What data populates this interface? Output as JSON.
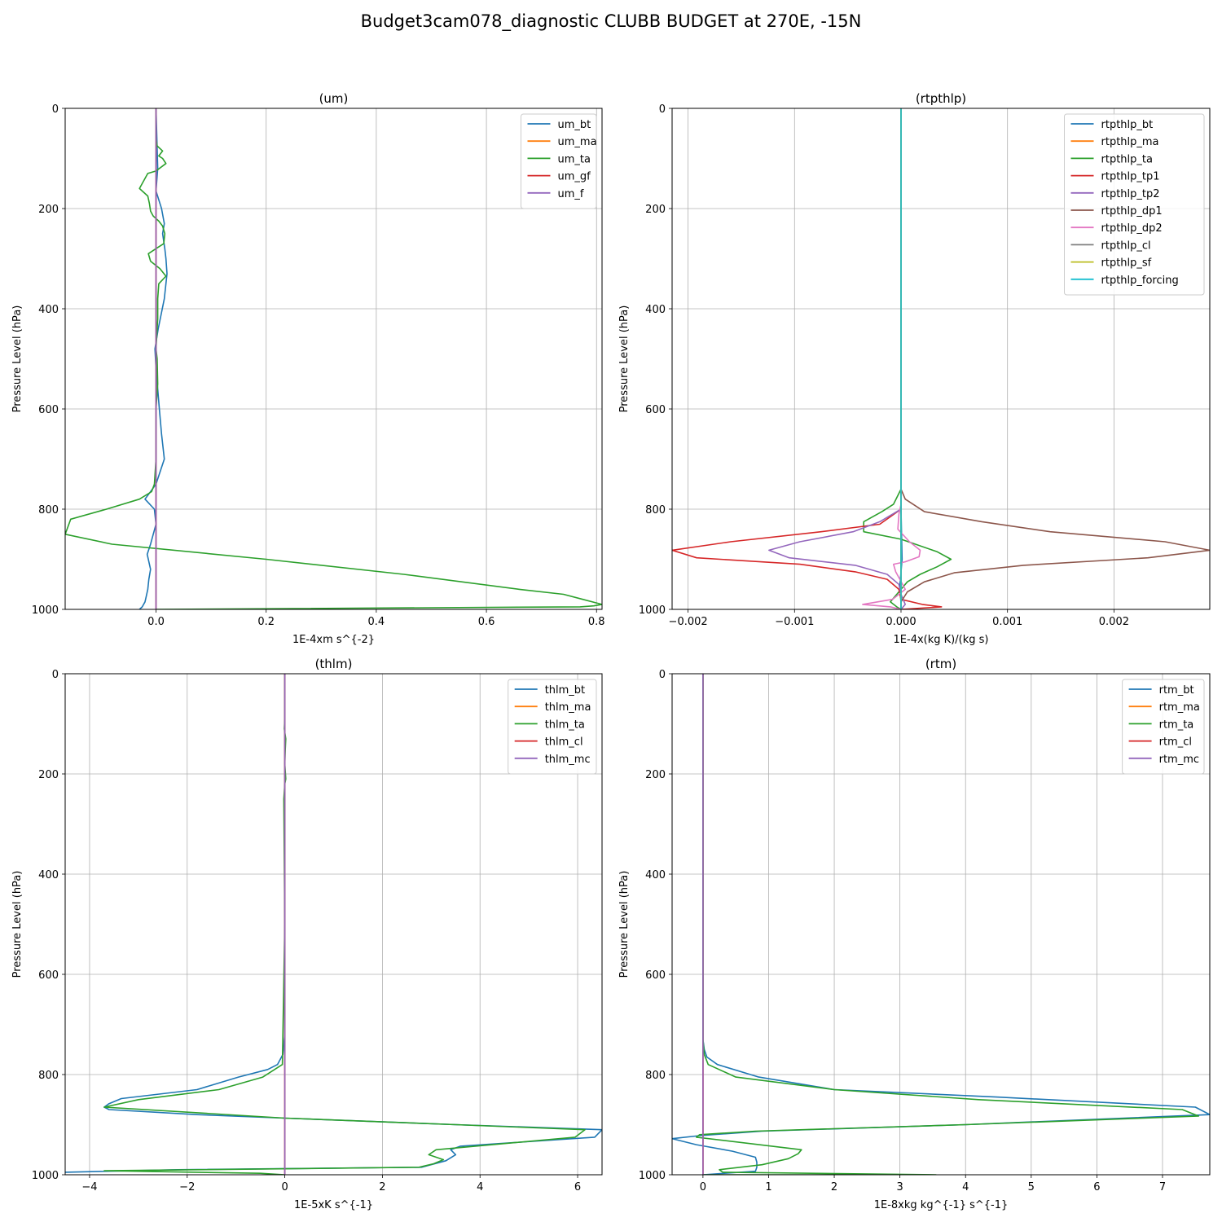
{
  "figure": {
    "title": "Budget3cam078_diagnostic CLUBB BUDGET at 270E, -15N"
  },
  "chart_data": [
    {
      "type": "line",
      "title": "(um)",
      "xlabel": "1E-4xm s^{-2}",
      "ylabel": "Pressure Level (hPa)",
      "xlim": [
        -0.165,
        0.81
      ],
      "ylim": [
        1000,
        0
      ],
      "xticks": [
        0.0,
        0.2,
        0.4,
        0.6,
        0.8
      ],
      "xtick_labels": [
        "0.0",
        "0.2",
        "0.4",
        "0.6",
        "0.8"
      ],
      "yticks": [
        0,
        200,
        400,
        600,
        800,
        1000
      ],
      "ytick_labels": [
        "0",
        "200",
        "400",
        "600",
        "800",
        "1000"
      ],
      "grid": true,
      "legend_loc": "upper right",
      "series": [
        {
          "name": "um_bt",
          "color": "#1f77b4",
          "x": [
            0.0,
            0.003,
            0.0,
            0.01,
            0.015,
            0.012,
            0.016,
            0.018,
            0.02,
            0.015,
            0.004,
            -0.002,
            0.0,
            0.003,
            0.006,
            0.01,
            0.015,
            0.0,
            -0.02,
            -0.003,
            0.0,
            -0.005,
            -0.01,
            -0.016,
            -0.01,
            -0.013,
            -0.015,
            -0.018,
            -0.02,
            -0.025,
            -0.03
          ],
          "y": [
            0,
            120,
            165,
            200,
            230,
            250,
            280,
            300,
            330,
            380,
            440,
            480,
            520,
            560,
            600,
            650,
            700,
            750,
            780,
            800,
            830,
            850,
            870,
            890,
            920,
            940,
            960,
            975,
            985,
            995,
            1000
          ]
        },
        {
          "name": "um_ma",
          "color": "#ff7f0e",
          "x": [
            0.0,
            0.0
          ],
          "y": [
            0,
            1000
          ]
        },
        {
          "name": "um_ta",
          "color": "#2ca02c",
          "x": [
            0.0,
            0.0,
            0.002,
            0.012,
            0.005,
            0.012,
            0.018,
            0.0,
            -0.015,
            -0.03,
            -0.015,
            -0.012,
            -0.01,
            -0.005,
            0.005,
            0.012,
            0.016,
            0.014,
            0.0,
            -0.014,
            -0.01,
            0.007,
            0.018,
            0.005,
            0.003,
            0.003,
            0.0,
            0.002,
            0.003,
            0.0,
            0.0,
            -0.003,
            -0.008,
            -0.03,
            -0.09,
            -0.155,
            -0.165,
            -0.08,
            0.2,
            0.45,
            0.66,
            0.74,
            0.775,
            0.81,
            0.795,
            0.77,
            0.0
          ],
          "y": [
            0,
            60,
            75,
            85,
            95,
            100,
            110,
            125,
            130,
            160,
            175,
            190,
            205,
            215,
            225,
            235,
            250,
            270,
            280,
            290,
            305,
            320,
            335,
            350,
            380,
            420,
            480,
            500,
            550,
            600,
            700,
            750,
            765,
            780,
            800,
            820,
            850,
            870,
            900,
            930,
            960,
            970,
            980,
            990,
            993,
            995,
            1000
          ]
        },
        {
          "name": "um_gf",
          "color": "#d62728",
          "x": [
            0.0,
            0.0
          ],
          "y": [
            0,
            1000
          ]
        },
        {
          "name": "um_f",
          "color": "#9467bd",
          "x": [
            0.0,
            0.0
          ],
          "y": [
            0,
            1000
          ]
        }
      ]
    },
    {
      "type": "line",
      "title": "(rtpthlp)",
      "xlabel": "1E-4x(kg K)/(kg s)",
      "ylabel": "Pressure Level (hPa)",
      "xlim": [
        -0.00215,
        0.0029
      ],
      "ylim": [
        1000,
        0
      ],
      "xticks": [
        -0.002,
        -0.001,
        0.0,
        0.001,
        0.002
      ],
      "xtick_labels": [
        "−0.002",
        "−0.001",
        "0.000",
        "0.001",
        "0.002"
      ],
      "yticks": [
        0,
        200,
        400,
        600,
        800,
        1000
      ],
      "ytick_labels": [
        "0",
        "200",
        "400",
        "600",
        "800",
        "1000"
      ],
      "grid": true,
      "legend_loc": "upper right",
      "series": [
        {
          "name": "rtpthlp_bt",
          "color": "#1f77b4",
          "x": [
            0.0,
            0.0,
            1e-05,
            -1e-05,
            0.0,
            0.0
          ],
          "y": [
            0,
            800,
            900,
            950,
            990,
            1000
          ]
        },
        {
          "name": "rtpthlp_ma",
          "color": "#ff7f0e",
          "x": [
            0.0,
            0.0
          ],
          "y": [
            0,
            1000
          ]
        },
        {
          "name": "rtpthlp_ta",
          "color": "#2ca02c",
          "x": [
            0.0,
            0.0,
            -7e-05,
            -0.00018,
            -0.00035,
            -0.00035,
            0.0,
            0.00034,
            0.00047,
            0.00034,
            0.00018,
            6e-05,
            0.0,
            -0.0001,
            -4e-05,
            0.0
          ],
          "y": [
            0,
            760,
            790,
            805,
            825,
            845,
            860,
            885,
            900,
            915,
            930,
            945,
            960,
            985,
            995,
            1000
          ]
        },
        {
          "name": "rtpthlp_tp1",
          "color": "#d62728",
          "x": [
            0.0,
            0.0,
            -0.0002,
            -0.00075,
            -0.0016,
            -0.00215,
            -0.00192,
            -0.00095,
            -0.00043,
            -0.00013,
            -2e-05,
            0.0,
            0.0002,
            0.00038,
            0.0
          ],
          "y": [
            0,
            800,
            830,
            845,
            865,
            882,
            897,
            910,
            925,
            940,
            960,
            980,
            990,
            995,
            1000
          ]
        },
        {
          "name": "rtpthlp_tp2",
          "color": "#9467bd",
          "x": [
            0.0,
            0.0,
            -0.0002,
            -0.00045,
            -0.00095,
            -0.00124,
            -0.00105,
            -0.00043,
            -0.00013,
            -2e-05,
            0.0,
            4e-05,
            0.0
          ],
          "y": [
            0,
            800,
            825,
            845,
            865,
            882,
            897,
            912,
            930,
            950,
            970,
            990,
            1000
          ]
        },
        {
          "name": "rtpthlp_dp1",
          "color": "#8c564b",
          "x": [
            0.0,
            0.0,
            4e-05,
            0.00022,
            0.00076,
            0.0014,
            0.00248,
            0.0029,
            0.00232,
            0.00115,
            0.0005,
            0.00022,
            6e-05,
            0.0,
            0.0
          ],
          "y": [
            0,
            760,
            780,
            805,
            825,
            845,
            865,
            882,
            897,
            912,
            927,
            945,
            965,
            985,
            1000
          ]
        },
        {
          "name": "rtpthlp_dp2",
          "color": "#e377c2",
          "x": [
            0.0,
            0.0,
            -2e-05,
            -3e-05,
            8e-05,
            0.00018,
            0.00017,
            4e-05,
            -7e-05,
            -5e-05,
            4e-05,
            -8e-05,
            -0.00036,
            -0.0001,
            0.0
          ],
          "y": [
            0,
            790,
            810,
            840,
            865,
            882,
            895,
            905,
            910,
            925,
            960,
            980,
            990,
            995,
            1000
          ]
        },
        {
          "name": "rtpthlp_cl",
          "color": "#7f7f7f",
          "x": [
            0.0,
            0.0
          ],
          "y": [
            0,
            1000
          ]
        },
        {
          "name": "rtpthlp_sf",
          "color": "#bcbd22",
          "x": [
            0.0,
            0.0
          ],
          "y": [
            0,
            1000
          ]
        },
        {
          "name": "rtpthlp_forcing",
          "color": "#17becf",
          "x": [
            0.0,
            0.0
          ],
          "y": [
            0,
            1000
          ]
        }
      ]
    },
    {
      "type": "line",
      "title": "(thlm)",
      "xlabel": "1E-5xK s^{-1}",
      "ylabel": "Pressure Level (hPa)",
      "xlim": [
        -4.5,
        6.5
      ],
      "ylim": [
        1000,
        0
      ],
      "xticks": [
        -4,
        -2,
        0,
        2,
        4,
        6
      ],
      "xtick_labels": [
        "−4",
        "−2",
        "0",
        "2",
        "4",
        "6"
      ],
      "yticks": [
        0,
        200,
        400,
        600,
        800,
        1000
      ],
      "ytick_labels": [
        "0",
        "200",
        "400",
        "600",
        "800",
        "1000"
      ],
      "grid": true,
      "legend_loc": "upper right",
      "series": [
        {
          "name": "thlm_bt",
          "color": "#1f77b4",
          "x": [
            0.0,
            0.0,
            0.0,
            -0.02,
            -0.04,
            -0.15,
            -0.35,
            -0.95,
            -1.8,
            -3.35,
            -3.6,
            -3.7,
            -3.6,
            -1.8,
            0.0,
            3.5,
            6.5,
            6.35,
            3.6,
            3.4,
            3.5,
            3.3,
            2.8,
            -2.2,
            -4.5
          ],
          "y": [
            0,
            600,
            720,
            740,
            760,
            780,
            790,
            805,
            830,
            848,
            858,
            865,
            870,
            880,
            887,
            900,
            910,
            925,
            943,
            950,
            960,
            972,
            985,
            990,
            995
          ]
        },
        {
          "name": "thlm_ma",
          "color": "#ff7f0e",
          "x": [
            0.0,
            0.0
          ],
          "y": [
            0,
            1000
          ]
        },
        {
          "name": "thlm_ta",
          "color": "#2ca02c",
          "x": [
            0.0,
            0.0,
            -0.01,
            0.02,
            0.01,
            0.0,
            0.02,
            0.0,
            -0.02,
            0.0,
            -0.05,
            -0.45,
            -1.35,
            -3.0,
            -3.7,
            -1.5,
            0.0,
            3.5,
            6.15,
            5.95,
            3.1,
            2.95,
            3.25,
            3.05,
            2.75,
            -3.7,
            -0.5,
            0.0
          ],
          "y": [
            0,
            90,
            110,
            130,
            150,
            180,
            210,
            220,
            250,
            500,
            780,
            805,
            830,
            850,
            865,
            878,
            887,
            900,
            910,
            925,
            950,
            960,
            970,
            978,
            985,
            992,
            997,
            1000
          ]
        },
        {
          "name": "thlm_cl",
          "color": "#d62728",
          "x": [
            0.0,
            0.0
          ],
          "y": [
            0,
            1000
          ]
        },
        {
          "name": "thlm_mc",
          "color": "#9467bd",
          "x": [
            0.0,
            0.0
          ],
          "y": [
            0,
            1000
          ]
        }
      ]
    },
    {
      "type": "line",
      "title": "(rtm)",
      "xlabel": "1E-8xkg kg^{-1} s^{-1}",
      "ylabel": "Pressure Level (hPa)",
      "xlim": [
        -0.47,
        7.72
      ],
      "ylim": [
        1000,
        0
      ],
      "xticks": [
        0,
        1,
        2,
        3,
        4,
        5,
        6,
        7
      ],
      "xtick_labels": [
        "0",
        "1",
        "2",
        "3",
        "4",
        "5",
        "6",
        "7"
      ],
      "yticks": [
        0,
        200,
        400,
        600,
        800,
        1000
      ],
      "ytick_labels": [
        "0",
        "200",
        "400",
        "600",
        "800",
        "1000"
      ],
      "grid": true,
      "legend_loc": "upper right",
      "series": [
        {
          "name": "rtm_bt",
          "color": "#1f77b4",
          "x": [
            0.0,
            0.0,
            0.02,
            0.06,
            0.22,
            0.85,
            2.0,
            4.5,
            7.5,
            7.72,
            4.0,
            0.9,
            -0.05,
            -0.47,
            -0.1,
            0.45,
            0.8,
            0.82,
            0.82,
            0.8,
            0.0
          ],
          "y": [
            0,
            730,
            750,
            765,
            780,
            805,
            830,
            845,
            865,
            880,
            900,
            913,
            922,
            928,
            940,
            953,
            965,
            975,
            985,
            993,
            1000
          ]
        },
        {
          "name": "rtm_ma",
          "color": "#ff7f0e",
          "x": [
            0.0,
            0.0
          ],
          "y": [
            0,
            1000
          ]
        },
        {
          "name": "rtm_cl",
          "color": "#d62728",
          "x": [
            0.0,
            0.0
          ],
          "y": [
            0,
            1000
          ]
        },
        {
          "name": "rtm_ta",
          "color": "#2ca02c",
          "x": [
            0.0,
            0.0,
            0.02,
            0.08,
            0.5,
            2.0,
            4.2,
            7.3,
            7.55,
            4.0,
            0.8,
            -0.05,
            -0.1,
            1.5,
            1.45,
            1.3,
            0.9,
            0.25,
            0.3,
            3.55,
            0.0
          ],
          "y": [
            0,
            730,
            760,
            780,
            805,
            830,
            850,
            870,
            883,
            900,
            913,
            920,
            925,
            950,
            958,
            968,
            980,
            990,
            995,
            1000,
            1000
          ]
        },
        {
          "name": "rtm_mc",
          "color": "#9467bd",
          "x": [
            0.0,
            0.0
          ],
          "y": [
            0,
            1000
          ]
        }
      ],
      "legend_order": [
        "rtm_bt",
        "rtm_ma",
        "rtm_ta",
        "rtm_cl",
        "rtm_mc"
      ]
    }
  ]
}
